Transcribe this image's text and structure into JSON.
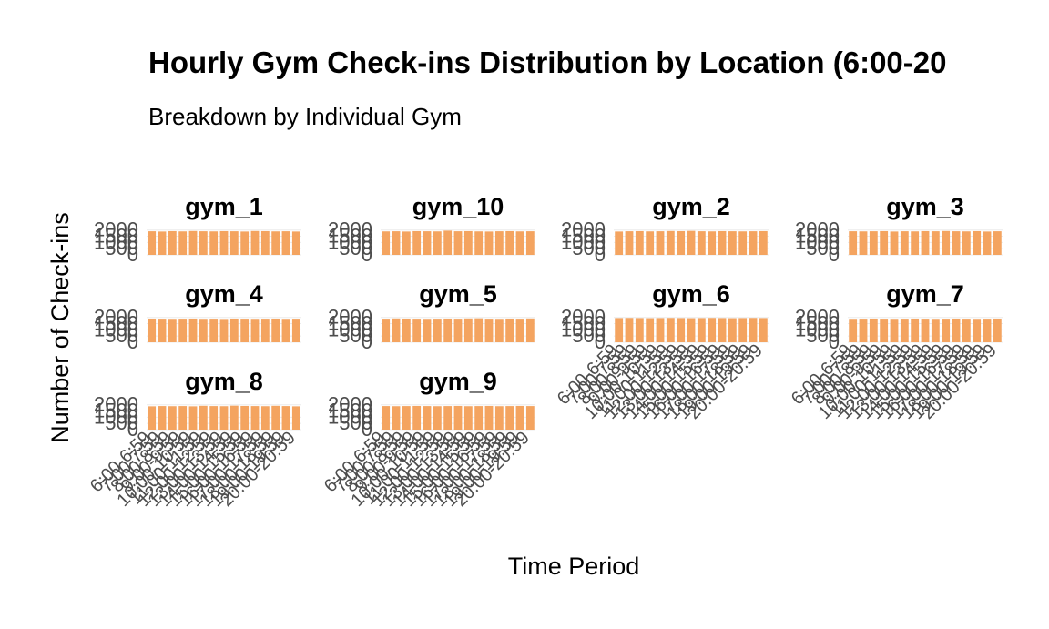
{
  "chart_data": {
    "type": "bar",
    "title": "Hourly Gym Check-ins Distribution by Location (6:00-20",
    "subtitle": "Breakdown by Individual Gym",
    "xlabel": "Time Period",
    "ylabel": "Number of Check-ins",
    "ylim": [
      0,
      2200
    ],
    "yticks": [
      "0",
      "500",
      "1000",
      "1500",
      "2000"
    ],
    "bar_color": "#F4A460",
    "grid_color": "#EBEBEB",
    "facet_layout": "4 columns x 3 rows",
    "categories": [
      "6:00-6:59",
      "7:00-7:59",
      "8:00-8:59",
      "9:00-9:59",
      "10:00-10:59",
      "11:00-11:59",
      "12:00-12:59",
      "13:00-13:59",
      "14:00-14:59",
      "15:00-15:59",
      "16:00-16:59",
      "17:00-17:59",
      "18:00-18:59",
      "19:00-19:59",
      "20:00-20:59"
    ],
    "panels": [
      {
        "name": "gym_1",
        "values": [
          1900,
          1880,
          1910,
          1890,
          1920,
          1900,
          1890,
          1910,
          1900,
          1880,
          1920,
          1910,
          1890,
          1900,
          1880
        ]
      },
      {
        "name": "gym_10",
        "values": [
          1890,
          1900,
          1880,
          1910,
          1900,
          1890,
          1950,
          1900,
          1910,
          1890,
          1880,
          1900,
          1910,
          1890,
          1900
        ]
      },
      {
        "name": "gym_2",
        "values": [
          1880,
          1900,
          1910,
          1890,
          1900,
          1920,
          1910,
          1930,
          1900,
          1890,
          1910,
          1900,
          1890,
          1900,
          1910
        ]
      },
      {
        "name": "gym_3",
        "values": [
          1900,
          1890,
          1900,
          1910,
          1880,
          1900,
          1890,
          1910,
          1900,
          1920,
          1900,
          1890,
          1910,
          1880,
          1900
        ]
      },
      {
        "name": "gym_4",
        "values": [
          1910,
          1900,
          1890,
          1900,
          1910,
          1890,
          1900,
          1880,
          1910,
          1900,
          1890,
          1900,
          1910,
          1890,
          1900
        ]
      },
      {
        "name": "gym_5",
        "values": [
          1900,
          1920,
          1910,
          1900,
          1890,
          1900,
          1910,
          1900,
          1920,
          1930,
          1900,
          1890,
          1910,
          1900,
          1920
        ]
      },
      {
        "name": "gym_6",
        "values": [
          1950,
          1960,
          1950,
          1940,
          1950,
          1960,
          1950,
          1940,
          1950,
          1960,
          1950,
          1940,
          1950,
          1960,
          1950
        ]
      },
      {
        "name": "gym_7",
        "values": [
          1890,
          1900,
          1910,
          1900,
          1890,
          1900,
          1910,
          1900,
          1890,
          1900,
          1910,
          1900,
          1890,
          1900,
          1910
        ]
      },
      {
        "name": "gym_8",
        "values": [
          1880,
          1900,
          1890,
          1900,
          1880,
          1920,
          1900,
          1890,
          1930,
          1910,
          1900,
          1890,
          1920,
          1900,
          1880
        ]
      },
      {
        "name": "gym_9",
        "values": [
          1900,
          1890,
          1900,
          1910,
          1900,
          1890,
          1900,
          1910,
          1890,
          1900,
          1910,
          1890,
          1900,
          1910,
          1900
        ]
      }
    ]
  }
}
